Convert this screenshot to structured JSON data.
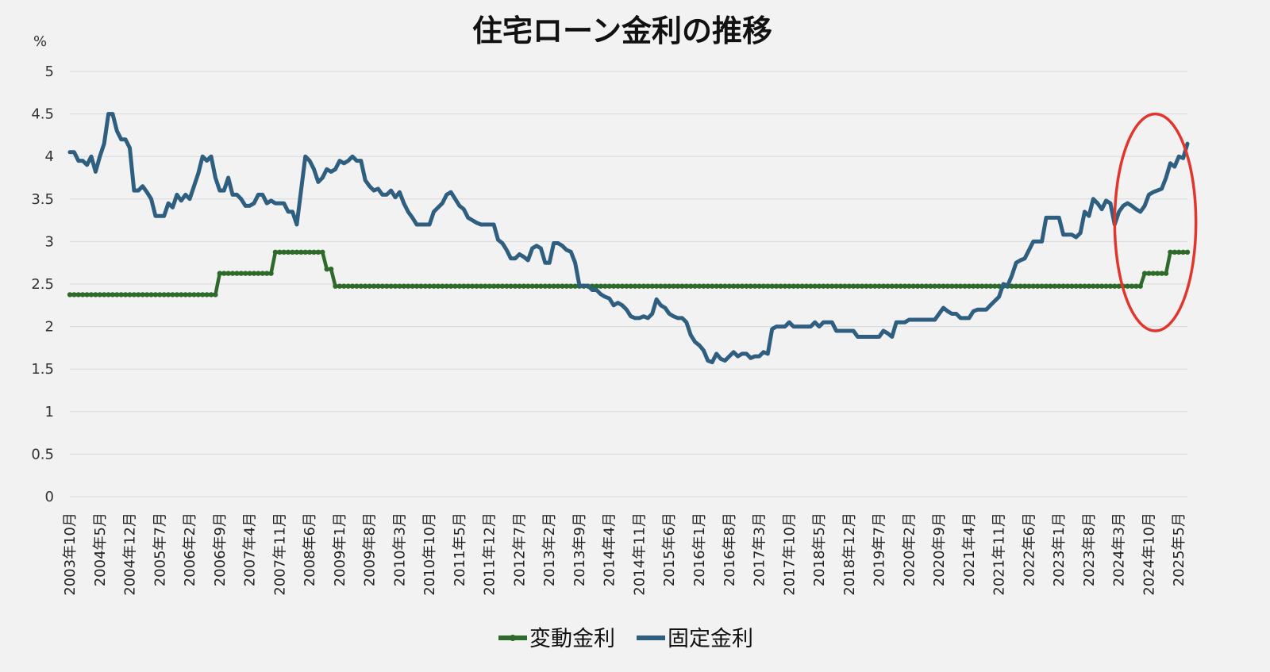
{
  "chart_data": {
    "type": "line",
    "title": "住宅ローン金利の推移",
    "yunit": "%",
    "ylim": [
      0,
      5
    ],
    "yticks": [
      "0",
      "0.5",
      "1",
      "1.5",
      "2",
      "2.5",
      "3",
      "3.5",
      "4",
      "4.5",
      "5"
    ],
    "grid": true,
    "legend_position": "bottom",
    "x_axis_labels": [
      "2003年10月",
      "2004年5月",
      "2004年12月",
      "2005年7月",
      "2006年2月",
      "2006年9月",
      "2007年4月",
      "2007年11月",
      "2008年6月",
      "2009年1月",
      "2009年8月",
      "2010年3月",
      "2010年10月",
      "2011年5月",
      "2011年12月",
      "2012年7月",
      "2013年2月",
      "2013年9月",
      "2014年4月",
      "2014年11月",
      "2015年6月",
      "2016年1月",
      "2016年8月",
      "2017年3月",
      "2017年10月",
      "2018年5月",
      "2018年12月",
      "2019年7月",
      "2020年2月",
      "2020年9月",
      "2021年4月",
      "2021年11月",
      "2022年6月",
      "2023年1月",
      "2023年8月",
      "2024年3月",
      "2024年10月",
      "2025年5月"
    ],
    "series": [
      {
        "name": "変動金利",
        "color": "#2e6a2a",
        "marker": "dot",
        "points": [
          [
            "2003-10",
            2.375
          ],
          [
            "2006-08",
            2.375
          ],
          [
            "2006-09",
            2.625
          ],
          [
            "2007-09",
            2.625
          ],
          [
            "2007-10",
            2.875
          ],
          [
            "2008-09",
            2.875
          ],
          [
            "2008-10",
            2.675
          ],
          [
            "2008-11",
            2.675
          ],
          [
            "2008-12",
            2.475
          ],
          [
            "2024-08",
            2.475
          ],
          [
            "2024-09",
            2.625
          ],
          [
            "2025-02",
            2.625
          ],
          [
            "2025-03",
            2.875
          ],
          [
            "2025-07",
            2.875
          ]
        ]
      },
      {
        "name": "固定金利",
        "color": "#2f5f80",
        "marker": "none",
        "points": [
          [
            "2003-10",
            4.05
          ],
          [
            "2003-11",
            4.05
          ],
          [
            "2003-12",
            3.95
          ],
          [
            "2004-01",
            3.95
          ],
          [
            "2004-02",
            3.9
          ],
          [
            "2004-03",
            4.0
          ],
          [
            "2004-04",
            3.82
          ],
          [
            "2004-05",
            4.0
          ],
          [
            "2004-06",
            4.15
          ],
          [
            "2004-07",
            4.5
          ],
          [
            "2004-08",
            4.5
          ],
          [
            "2004-09",
            4.3
          ],
          [
            "2004-10",
            4.2
          ],
          [
            "2004-11",
            4.2
          ],
          [
            "2004-12",
            4.1
          ],
          [
            "2005-01",
            3.6
          ],
          [
            "2005-02",
            3.6
          ],
          [
            "2005-03",
            3.65
          ],
          [
            "2005-04",
            3.58
          ],
          [
            "2005-05",
            3.5
          ],
          [
            "2005-06",
            3.3
          ],
          [
            "2005-07",
            3.3
          ],
          [
            "2005-08",
            3.3
          ],
          [
            "2005-09",
            3.45
          ],
          [
            "2005-10",
            3.4
          ],
          [
            "2005-11",
            3.55
          ],
          [
            "2005-12",
            3.48
          ],
          [
            "2006-01",
            3.55
          ],
          [
            "2006-02",
            3.5
          ],
          [
            "2006-03",
            3.65
          ],
          [
            "2006-04",
            3.8
          ],
          [
            "2006-05",
            4.0
          ],
          [
            "2006-06",
            3.95
          ],
          [
            "2006-07",
            4.0
          ],
          [
            "2006-08",
            3.75
          ],
          [
            "2006-09",
            3.6
          ],
          [
            "2006-10",
            3.6
          ],
          [
            "2006-11",
            3.75
          ],
          [
            "2006-12",
            3.55
          ],
          [
            "2007-01",
            3.55
          ],
          [
            "2007-02",
            3.5
          ],
          [
            "2007-03",
            3.42
          ],
          [
            "2007-04",
            3.42
          ],
          [
            "2007-05",
            3.45
          ],
          [
            "2007-06",
            3.55
          ],
          [
            "2007-07",
            3.55
          ],
          [
            "2007-08",
            3.45
          ],
          [
            "2007-09",
            3.48
          ],
          [
            "2007-10",
            3.45
          ],
          [
            "2007-11",
            3.45
          ],
          [
            "2007-12",
            3.45
          ],
          [
            "2008-01",
            3.35
          ],
          [
            "2008-02",
            3.35
          ],
          [
            "2008-03",
            3.2
          ],
          [
            "2008-04",
            3.6
          ],
          [
            "2008-05",
            4.0
          ],
          [
            "2008-06",
            3.95
          ],
          [
            "2008-07",
            3.85
          ],
          [
            "2008-08",
            3.7
          ],
          [
            "2008-09",
            3.75
          ],
          [
            "2008-10",
            3.85
          ],
          [
            "2008-11",
            3.82
          ],
          [
            "2008-12",
            3.85
          ],
          [
            "2009-01",
            3.95
          ],
          [
            "2009-02",
            3.92
          ],
          [
            "2009-03",
            3.95
          ],
          [
            "2009-04",
            4.0
          ],
          [
            "2009-05",
            3.95
          ],
          [
            "2009-06",
            3.95
          ],
          [
            "2009-07",
            3.72
          ],
          [
            "2009-08",
            3.65
          ],
          [
            "2009-09",
            3.6
          ],
          [
            "2009-10",
            3.62
          ],
          [
            "2009-11",
            3.55
          ],
          [
            "2009-12",
            3.55
          ],
          [
            "2010-01",
            3.6
          ],
          [
            "2010-02",
            3.52
          ],
          [
            "2010-03",
            3.58
          ],
          [
            "2010-04",
            3.45
          ],
          [
            "2010-05",
            3.35
          ],
          [
            "2010-06",
            3.28
          ],
          [
            "2010-07",
            3.2
          ],
          [
            "2010-08",
            3.2
          ],
          [
            "2010-09",
            3.2
          ],
          [
            "2010-10",
            3.2
          ],
          [
            "2010-11",
            3.35
          ],
          [
            "2010-12",
            3.4
          ],
          [
            "2011-01",
            3.45
          ],
          [
            "2011-02",
            3.55
          ],
          [
            "2011-03",
            3.58
          ],
          [
            "2011-04",
            3.5
          ],
          [
            "2011-05",
            3.42
          ],
          [
            "2011-06",
            3.38
          ],
          [
            "2011-07",
            3.28
          ],
          [
            "2011-08",
            3.25
          ],
          [
            "2011-09",
            3.22
          ],
          [
            "2011-10",
            3.2
          ],
          [
            "2011-11",
            3.2
          ],
          [
            "2011-12",
            3.2
          ],
          [
            "2012-01",
            3.2
          ],
          [
            "2012-02",
            3.02
          ],
          [
            "2012-03",
            2.98
          ],
          [
            "2012-04",
            2.9
          ],
          [
            "2012-05",
            2.8
          ],
          [
            "2012-06",
            2.8
          ],
          [
            "2012-07",
            2.85
          ],
          [
            "2012-08",
            2.82
          ],
          [
            "2012-09",
            2.78
          ],
          [
            "2012-10",
            2.92
          ],
          [
            "2012-11",
            2.95
          ],
          [
            "2012-12",
            2.92
          ],
          [
            "2013-01",
            2.75
          ],
          [
            "2013-02",
            2.75
          ],
          [
            "2013-03",
            2.98
          ],
          [
            "2013-04",
            2.98
          ],
          [
            "2013-05",
            2.95
          ],
          [
            "2013-06",
            2.9
          ],
          [
            "2013-07",
            2.88
          ],
          [
            "2013-08",
            2.75
          ],
          [
            "2013-09",
            2.48
          ],
          [
            "2013-10",
            2.48
          ],
          [
            "2013-11",
            2.48
          ],
          [
            "2013-12",
            2.43
          ],
          [
            "2014-01",
            2.43
          ],
          [
            "2014-02",
            2.38
          ],
          [
            "2014-03",
            2.35
          ],
          [
            "2014-04",
            2.33
          ],
          [
            "2014-05",
            2.25
          ],
          [
            "2014-06",
            2.28
          ],
          [
            "2014-07",
            2.25
          ],
          [
            "2014-08",
            2.2
          ],
          [
            "2014-09",
            2.12
          ],
          [
            "2014-10",
            2.1
          ],
          [
            "2014-11",
            2.1
          ],
          [
            "2014-12",
            2.12
          ],
          [
            "2015-01",
            2.1
          ],
          [
            "2015-02",
            2.15
          ],
          [
            "2015-03",
            2.32
          ],
          [
            "2015-04",
            2.25
          ],
          [
            "2015-05",
            2.22
          ],
          [
            "2015-06",
            2.15
          ],
          [
            "2015-07",
            2.12
          ],
          [
            "2015-08",
            2.1
          ],
          [
            "2015-09",
            2.1
          ],
          [
            "2015-10",
            2.05
          ],
          [
            "2015-11",
            1.9
          ],
          [
            "2015-12",
            1.82
          ],
          [
            "2016-01",
            1.78
          ],
          [
            "2016-02",
            1.72
          ],
          [
            "2016-03",
            1.6
          ],
          [
            "2016-04",
            1.58
          ],
          [
            "2016-05",
            1.68
          ],
          [
            "2016-06",
            1.62
          ],
          [
            "2016-07",
            1.6
          ],
          [
            "2016-08",
            1.65
          ],
          [
            "2016-09",
            1.7
          ],
          [
            "2016-10",
            1.65
          ],
          [
            "2016-11",
            1.68
          ],
          [
            "2016-12",
            1.68
          ],
          [
            "2017-01",
            1.63
          ],
          [
            "2017-02",
            1.65
          ],
          [
            "2017-03",
            1.65
          ],
          [
            "2017-04",
            1.7
          ],
          [
            "2017-05",
            1.68
          ],
          [
            "2017-06",
            1.97
          ],
          [
            "2017-07",
            2.0
          ],
          [
            "2017-08",
            2.0
          ],
          [
            "2017-09",
            2.0
          ],
          [
            "2017-10",
            2.05
          ],
          [
            "2017-11",
            2.0
          ],
          [
            "2017-12",
            2.0
          ],
          [
            "2018-01",
            2.0
          ],
          [
            "2018-02",
            2.0
          ],
          [
            "2018-03",
            2.0
          ],
          [
            "2018-04",
            2.05
          ],
          [
            "2018-05",
            2.0
          ],
          [
            "2018-06",
            2.05
          ],
          [
            "2018-07",
            2.05
          ],
          [
            "2018-08",
            2.05
          ],
          [
            "2018-09",
            1.95
          ],
          [
            "2018-10",
            1.95
          ],
          [
            "2018-11",
            1.95
          ],
          [
            "2018-12",
            1.95
          ],
          [
            "2019-01",
            1.95
          ],
          [
            "2019-02",
            1.88
          ],
          [
            "2019-03",
            1.88
          ],
          [
            "2019-04",
            1.88
          ],
          [
            "2019-05",
            1.88
          ],
          [
            "2019-06",
            1.88
          ],
          [
            "2019-07",
            1.88
          ],
          [
            "2019-08",
            1.95
          ],
          [
            "2019-09",
            1.92
          ],
          [
            "2019-10",
            1.88
          ],
          [
            "2019-11",
            2.05
          ],
          [
            "2019-12",
            2.05
          ],
          [
            "2020-01",
            2.05
          ],
          [
            "2020-02",
            2.08
          ],
          [
            "2020-03",
            2.08
          ],
          [
            "2020-04",
            2.08
          ],
          [
            "2020-05",
            2.08
          ],
          [
            "2020-06",
            2.08
          ],
          [
            "2020-07",
            2.08
          ],
          [
            "2020-08",
            2.08
          ],
          [
            "2020-09",
            2.15
          ],
          [
            "2020-10",
            2.22
          ],
          [
            "2020-11",
            2.18
          ],
          [
            "2020-12",
            2.15
          ],
          [
            "2021-01",
            2.15
          ],
          [
            "2021-02",
            2.1
          ],
          [
            "2021-03",
            2.1
          ],
          [
            "2021-04",
            2.1
          ],
          [
            "2021-05",
            2.18
          ],
          [
            "2021-06",
            2.2
          ],
          [
            "2021-07",
            2.2
          ],
          [
            "2021-08",
            2.2
          ],
          [
            "2021-09",
            2.25
          ],
          [
            "2021-10",
            2.3
          ],
          [
            "2021-11",
            2.35
          ],
          [
            "2021-12",
            2.5
          ],
          [
            "2022-01",
            2.48
          ],
          [
            "2022-02",
            2.6
          ],
          [
            "2022-03",
            2.75
          ],
          [
            "2022-04",
            2.78
          ],
          [
            "2022-05",
            2.8
          ],
          [
            "2022-06",
            2.9
          ],
          [
            "2022-07",
            3.0
          ],
          [
            "2022-08",
            3.0
          ],
          [
            "2022-09",
            3.0
          ],
          [
            "2022-10",
            3.28
          ],
          [
            "2022-11",
            3.28
          ],
          [
            "2022-12",
            3.28
          ],
          [
            "2023-01",
            3.28
          ],
          [
            "2023-02",
            3.08
          ],
          [
            "2023-03",
            3.08
          ],
          [
            "2023-04",
            3.08
          ],
          [
            "2023-05",
            3.05
          ],
          [
            "2023-06",
            3.1
          ],
          [
            "2023-07",
            3.35
          ],
          [
            "2023-08",
            3.3
          ],
          [
            "2023-09",
            3.5
          ],
          [
            "2023-10",
            3.45
          ],
          [
            "2023-11",
            3.38
          ],
          [
            "2023-12",
            3.48
          ],
          [
            "2024-01",
            3.45
          ],
          [
            "2024-02",
            3.2
          ],
          [
            "2024-03",
            3.35
          ],
          [
            "2024-04",
            3.42
          ],
          [
            "2024-05",
            3.45
          ],
          [
            "2024-06",
            3.42
          ],
          [
            "2024-07",
            3.38
          ],
          [
            "2024-08",
            3.35
          ],
          [
            "2024-09",
            3.42
          ],
          [
            "2024-10",
            3.55
          ],
          [
            "2024-11",
            3.58
          ],
          [
            "2024-12",
            3.6
          ],
          [
            "2025-01",
            3.62
          ],
          [
            "2025-02",
            3.75
          ],
          [
            "2025-03",
            3.92
          ],
          [
            "2025-04",
            3.88
          ],
          [
            "2025-05",
            4.0
          ],
          [
            "2025-06",
            3.98
          ],
          [
            "2025-07",
            4.15
          ]
        ]
      }
    ],
    "annotation": {
      "shape": "ellipse",
      "color": "#e0362c",
      "x_range": [
        "2024-02",
        "2025-09"
      ],
      "y_range": [
        1.95,
        4.5
      ]
    }
  }
}
